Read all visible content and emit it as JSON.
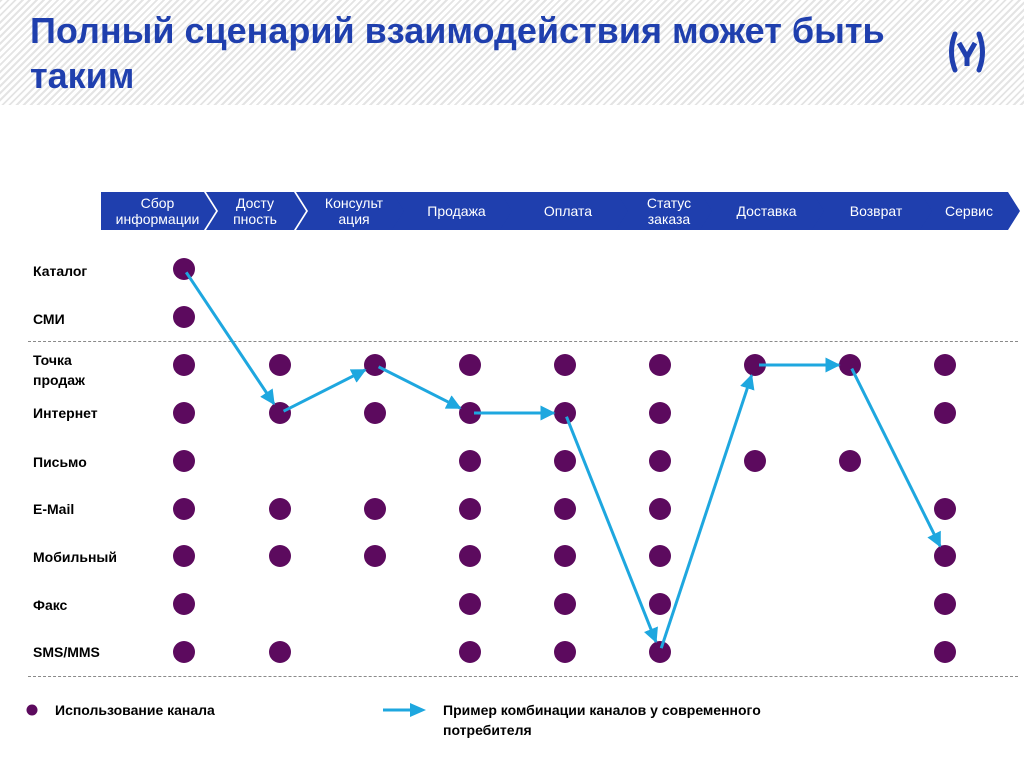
{
  "title": "Полный сценарий взаимодействия может быть таким",
  "logo_icon": "shield-bracket-logo-icon",
  "colors": {
    "title": "#1f3fae",
    "phase_fill": "#1f3fae",
    "dot": "#5c0a5e",
    "arrow": "#1ea7df"
  },
  "phases": [
    {
      "label": "Сбор информации"
    },
    {
      "label": "Досту пность"
    },
    {
      "label": "Консульт ация"
    },
    {
      "label": "Продажа"
    },
    {
      "label": "Оплата"
    },
    {
      "label": "Статус заказа"
    },
    {
      "label": "Доставка"
    },
    {
      "label": "Возврат"
    },
    {
      "label": "Сервис"
    }
  ],
  "channels": [
    {
      "label": "Каталог"
    },
    {
      "label": "СМИ"
    },
    {
      "label": "Точка продаж"
    },
    {
      "label": "Интернет"
    },
    {
      "label": "Письмо"
    },
    {
      "label": "E-Mail"
    },
    {
      "label": "Мобильный"
    },
    {
      "label": "Факс"
    },
    {
      "label": "SMS/MMS"
    }
  ],
  "usage": [
    [
      1,
      0,
      0,
      0,
      0,
      0,
      0,
      0,
      0
    ],
    [
      1,
      0,
      0,
      0,
      0,
      0,
      0,
      0,
      0
    ],
    [
      1,
      1,
      1,
      1,
      1,
      1,
      1,
      1,
      1
    ],
    [
      1,
      1,
      1,
      1,
      1,
      1,
      0,
      0,
      1
    ],
    [
      1,
      0,
      0,
      1,
      1,
      1,
      1,
      1,
      0
    ],
    [
      1,
      1,
      1,
      1,
      1,
      1,
      0,
      0,
      1
    ],
    [
      1,
      1,
      1,
      1,
      1,
      1,
      0,
      0,
      1
    ],
    [
      1,
      0,
      0,
      1,
      1,
      1,
      0,
      0,
      1
    ],
    [
      1,
      1,
      0,
      1,
      1,
      1,
      0,
      0,
      1
    ]
  ],
  "path": [
    {
      "phase": 0,
      "channel": 0
    },
    {
      "phase": 1,
      "channel": 3
    },
    {
      "phase": 2,
      "channel": 2
    },
    {
      "phase": 3,
      "channel": 3
    },
    {
      "phase": 4,
      "channel": 3
    },
    {
      "phase": 5,
      "channel": 8
    },
    {
      "phase": 6,
      "channel": 2
    },
    {
      "phase": 7,
      "channel": 2
    },
    {
      "phase": 8,
      "channel": 6
    }
  ],
  "legend": {
    "channel_use": "Использование канала",
    "combination": "Пример комбинации каналов у современного потребителя"
  }
}
